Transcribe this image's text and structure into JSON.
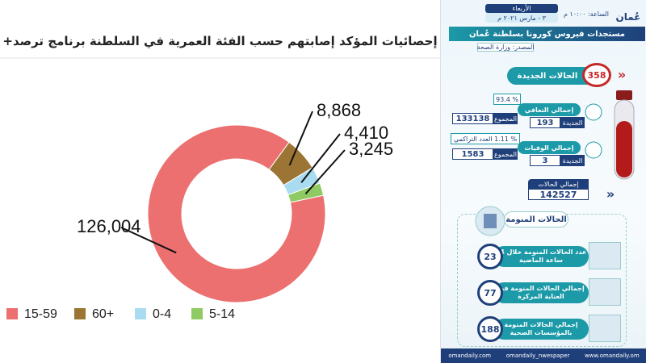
{
  "chart_data": {
    "type": "donut",
    "title": "إحصائيات المؤكد إصابتهم حسب الفئة العمرية في السلطنة برنامج ترصد+",
    "categories": [
      "15-59",
      "60+",
      "0-4",
      "5-14"
    ],
    "values": [
      126004,
      8868,
      4410,
      3245
    ],
    "value_labels": [
      "126,004",
      "8,868",
      "4,410",
      "3,245"
    ],
    "colors": [
      "#ec7070",
      "#9c7433",
      "#a9dcf1",
      "#8fca62"
    ],
    "legend": "bottom"
  },
  "infographic": {
    "day": "الأربعاء",
    "date": "٣ - مارس ٢٠٢١ م",
    "time": "الساعة: ١٠:٠٠ م",
    "logo": "عُمان",
    "header": "مستجدات فيروس كورونا بسلطنة عُمان",
    "source": "المصدر: وزارة الصحة",
    "new_cases": {
      "value": 358,
      "label": "الحالات الجديدة"
    },
    "recovery": {
      "percent": "% 93.4",
      "label": "إجمالي التعافي",
      "new_label": "الجديدة",
      "new_value": 193,
      "total_label": "المجموع",
      "total_value": 133138
    },
    "deaths": {
      "percent": "% 1.11 العدد التراكمي",
      "label": "إجمالي الوفيات",
      "new_label": "الجديدة",
      "new_value": 3,
      "total_label": "المجموع",
      "total_value": 1583
    },
    "total_cases": {
      "label": "إجمالي الحالات",
      "value": 142527
    },
    "hospital_title": "الحالات المنومة",
    "hospital": [
      {
        "value": 23,
        "label": "عدد الحالات المنومة خلال 24 ساعة الماضية"
      },
      {
        "value": 77,
        "label": "إجمالي الحالات المنومة في العناية المركزة"
      },
      {
        "value": 188,
        "label": "إجمالي الحالات المنومة بالمؤسسات الصحية"
      }
    ],
    "footer": [
      "omandaily.com",
      "omandaily_nwespaper",
      "www.omandaily.om"
    ]
  }
}
